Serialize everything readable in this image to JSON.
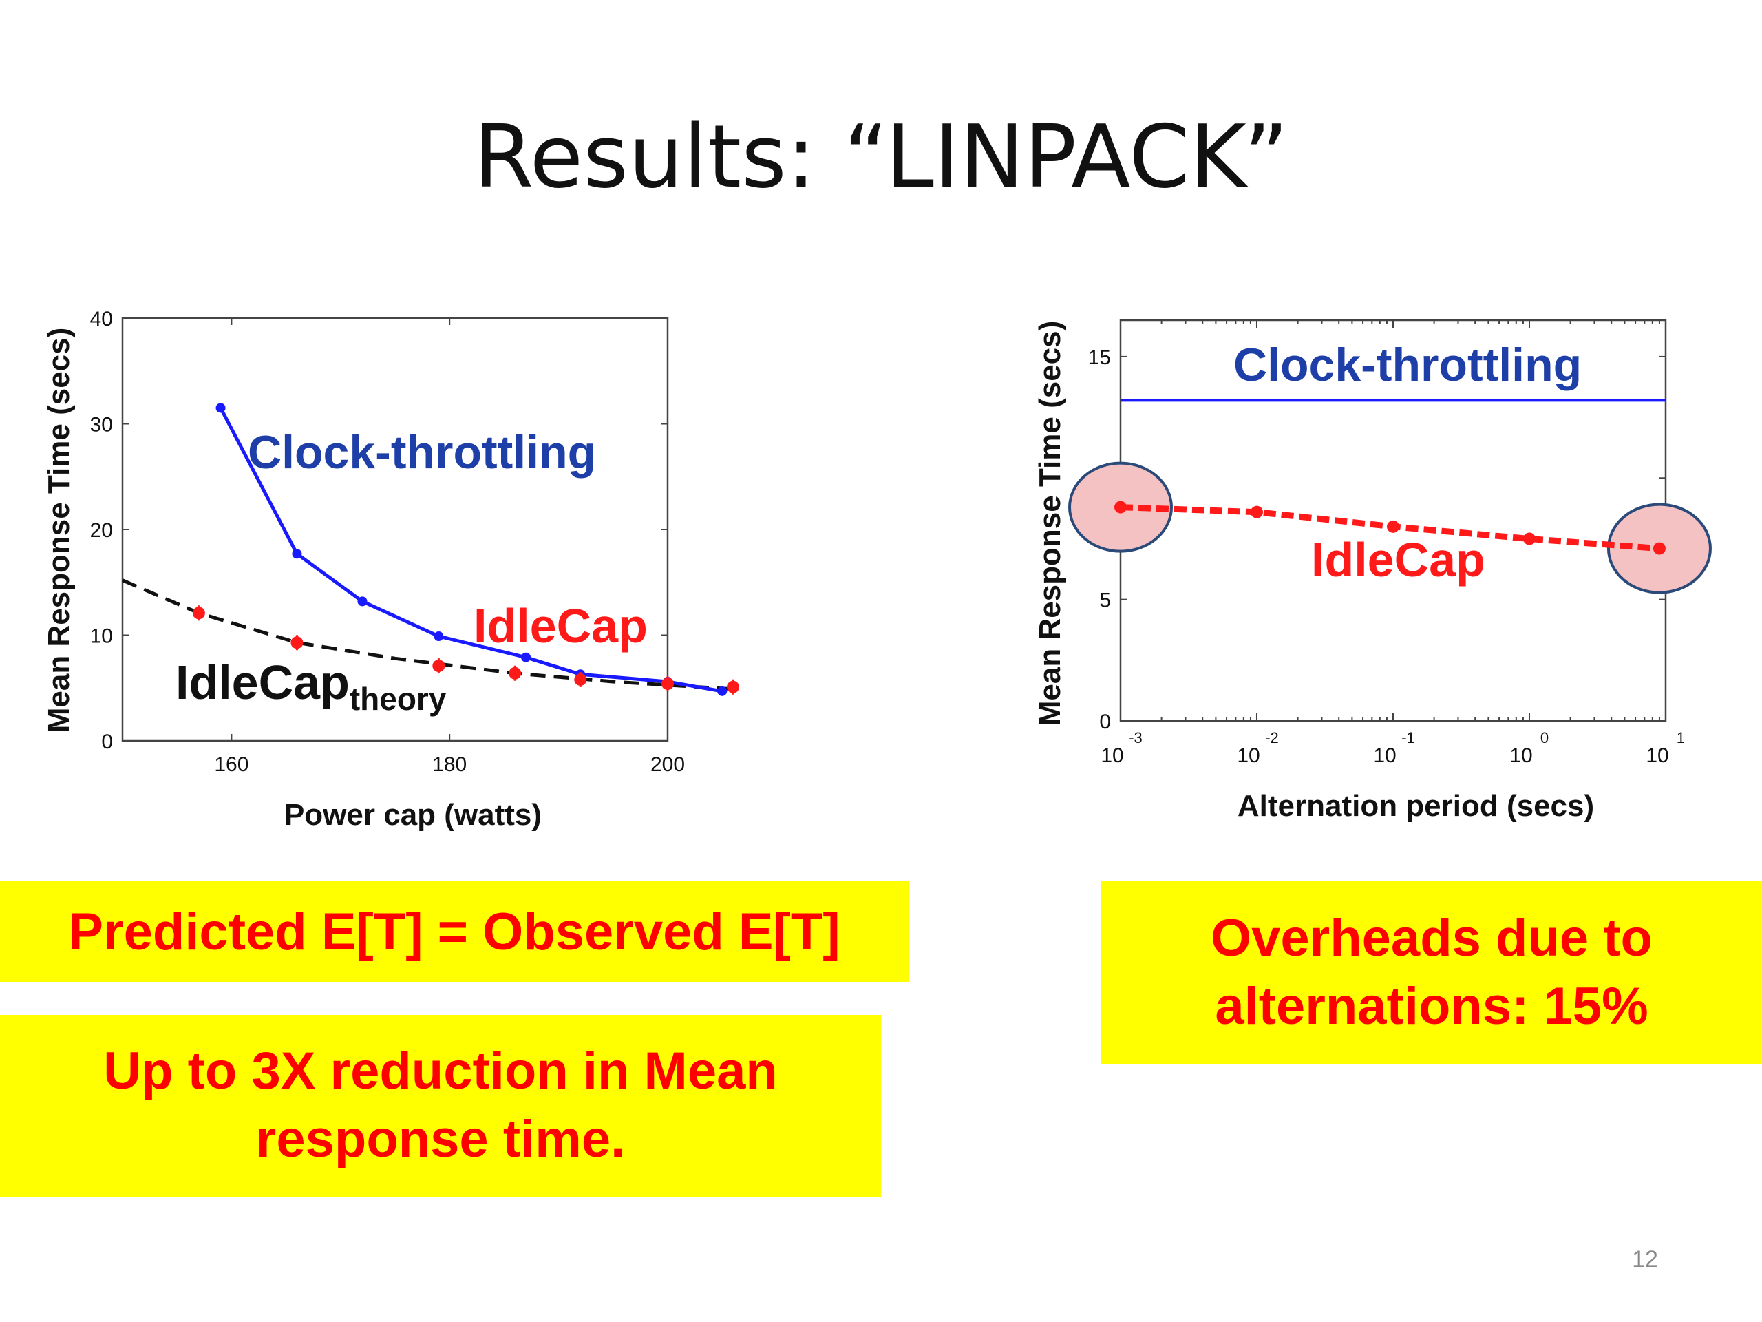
{
  "slide": {
    "title": "Results: “LINPACK”",
    "page_number": "12"
  },
  "callouts": {
    "prediction": "Predicted E[T] = Observed E[T]",
    "reduction": "Up to 3X reduction in Mean response time.",
    "overheads": "Overheads due to alternations: 15%"
  },
  "colors": {
    "clock_throttling": "#1a1aff",
    "clock_label": "#1f3fa8",
    "idlecap": "#ff1a1a",
    "theory": "#111111",
    "highlight_fill": "#f4c2c2",
    "highlight_stroke": "#2b4a7a",
    "callout_bg": "#ffff00",
    "callout_text": "#ff0000"
  },
  "chart_data": [
    {
      "type": "line",
      "xlabel": "Power cap (watts)",
      "ylabel": "Mean Response Time (secs)",
      "xlim": [
        150,
        200
      ],
      "ylim": [
        0,
        40
      ],
      "xticks": [
        160,
        180,
        200
      ],
      "yticks": [
        0,
        10,
        20,
        30,
        40
      ],
      "grid": false,
      "series": [
        {
          "name": "Clock-throttling",
          "style": "solid-dot",
          "color": "#1a1aff",
          "x": [
            159,
            166,
            172,
            179,
            187,
            192,
            200,
            205
          ],
          "y": [
            31.5,
            17.7,
            13.2,
            9.9,
            7.9,
            6.3,
            5.6,
            4.7
          ]
        },
        {
          "name": "IdleCap",
          "style": "marker",
          "color": "#ff1a1a",
          "x": [
            157,
            166,
            179,
            186,
            192,
            200,
            206
          ],
          "y": [
            12.1,
            9.3,
            7.1,
            6.4,
            5.8,
            5.4,
            5.1
          ]
        },
        {
          "name": "IdleCap",
          "name_subscript": "theory",
          "style": "dashed",
          "color": "#111111",
          "x": [
            150,
            157,
            166,
            175,
            186,
            195,
            206
          ],
          "y": [
            15.2,
            12.1,
            9.3,
            7.8,
            6.4,
            5.6,
            4.9
          ]
        }
      ]
    },
    {
      "type": "line",
      "xlabel": "Alternation period (secs)",
      "ylabel": "Mean Response Time (secs)",
      "xscale": "log",
      "xlim": [
        0.001,
        10
      ],
      "ylim": [
        0,
        16.5
      ],
      "xticks": [
        {
          "base": "10",
          "exp": "-3"
        },
        {
          "base": "10",
          "exp": "-2"
        },
        {
          "base": "10",
          "exp": "-1"
        },
        {
          "base": "10",
          "exp": "0"
        },
        {
          "base": "10",
          "exp": "1"
        }
      ],
      "yticks": [
        0,
        5,
        10,
        15
      ],
      "grid": false,
      "series": [
        {
          "name": "Clock-throttling",
          "style": "solid",
          "color": "#1a1aff",
          "x": [
            0.001,
            10
          ],
          "y": [
            13.2,
            13.2
          ]
        },
        {
          "name": "IdleCap",
          "style": "dashed-dot",
          "color": "#ff1a1a",
          "x": [
            0.001,
            0.01,
            0.1,
            1,
            9
          ],
          "y": [
            8.8,
            8.6,
            8.0,
            7.5,
            7.1
          ]
        }
      ],
      "highlighted_points": [
        0,
        4
      ]
    }
  ]
}
